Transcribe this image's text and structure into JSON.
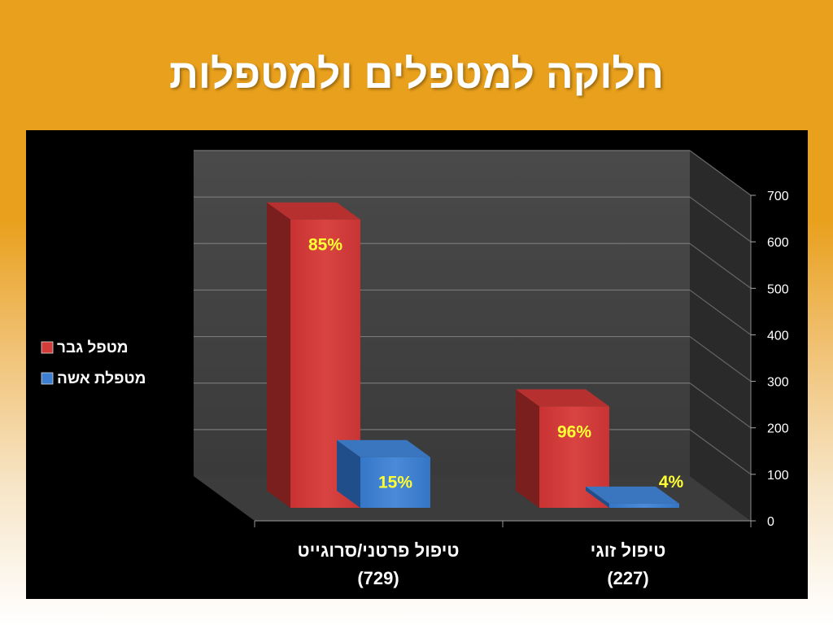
{
  "slide": {
    "title": "חלוקה למטפלים ולמטפלות"
  },
  "colors": {
    "female": "#d43c3a",
    "male": "#3d7fd0",
    "label": "#ffff33",
    "background": "#e9a01c"
  },
  "chart_data": {
    "type": "bar",
    "categories": [
      "טיפול פרטני/סרוגייט",
      "טיפול זוגי"
    ],
    "category_counts": [
      "(729)",
      "(227)"
    ],
    "series": [
      {
        "name": "מטפלת אשה",
        "values": [
          620,
          218
        ],
        "labels": [
          "85%",
          "96%"
        ]
      },
      {
        "name": "מטפל גבר",
        "values": [
          109,
          9
        ],
        "labels": [
          "15%",
          "4%"
        ]
      }
    ],
    "ylim": [
      0,
      700
    ],
    "yticks": [
      "0",
      "100",
      "200",
      "300",
      "400",
      "500",
      "600",
      "700"
    ],
    "legend_position": "left",
    "grid": true,
    "style": "3d"
  }
}
